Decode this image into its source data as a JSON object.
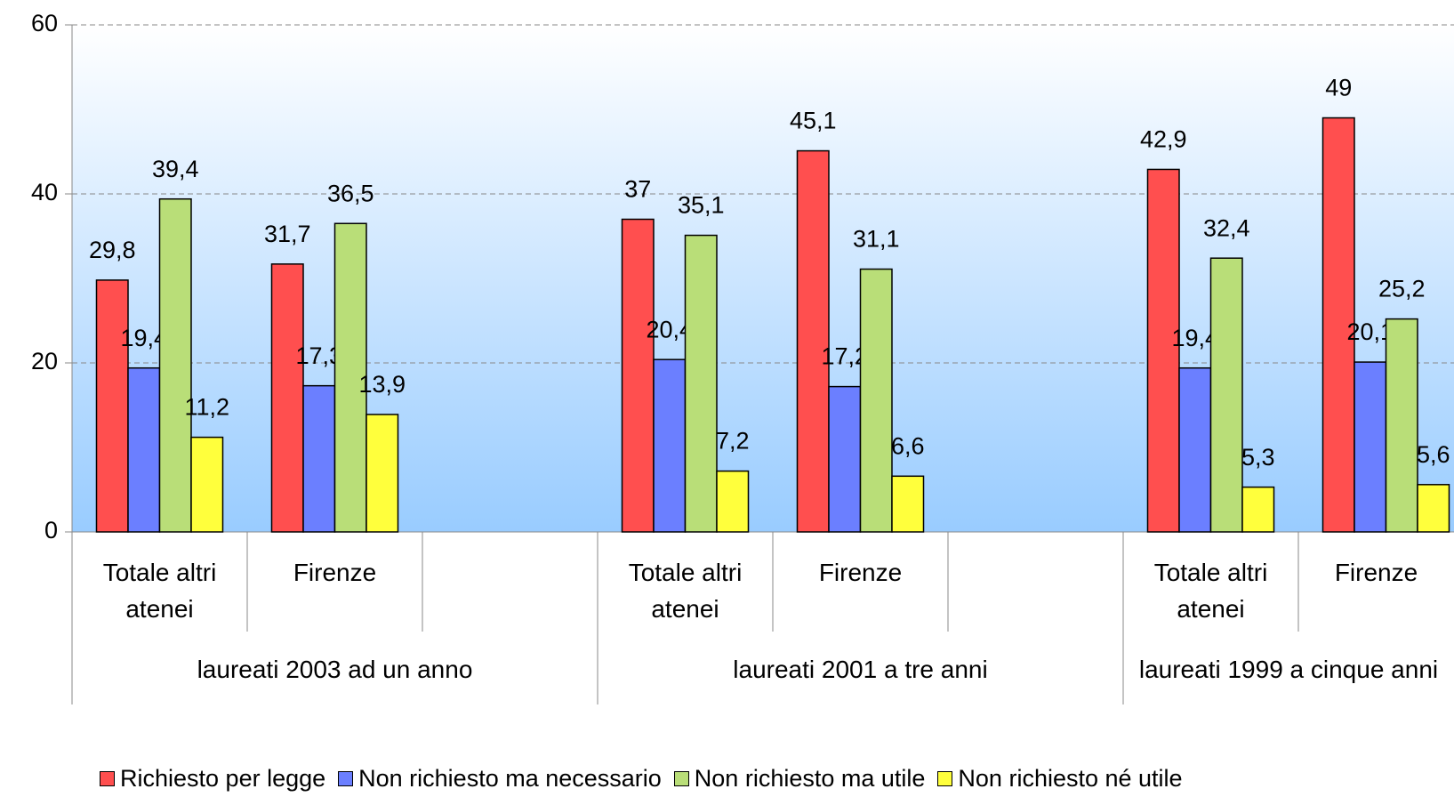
{
  "chart_data": {
    "type": "bar",
    "categories": [
      "Totale altri atenei",
      "Firenze",
      null,
      "Totale altri atenei",
      "Firenze",
      null,
      "Totale altri atenei",
      "Firenze",
      null
    ],
    "groups": [
      "laureati 2003 ad un anno",
      "laureati 2001 a tre anni",
      "laureati 1999 a cinque anni"
    ],
    "series": [
      {
        "name": "Richiesto per legge",
        "color": "#ff4f4f",
        "values": [
          29.8,
          31.7,
          null,
          37,
          45.1,
          null,
          42.9,
          49,
          null
        ],
        "value_labels": [
          "29,8",
          "31,7",
          null,
          "37",
          "45,1",
          null,
          "42,9",
          "49",
          null
        ]
      },
      {
        "name": "Non richiesto ma necessario",
        "color": "#6b7fff",
        "values": [
          19.4,
          17.3,
          null,
          20.4,
          17.2,
          null,
          19.4,
          20.1,
          null
        ],
        "value_labels": [
          "19,4",
          "17,3",
          null,
          "20,4",
          "17,2",
          null,
          "19,4",
          "20,1",
          null
        ]
      },
      {
        "name": "Non richiesto ma utile",
        "color": "#b9de78",
        "values": [
          39.4,
          36.5,
          null,
          35.1,
          31.1,
          null,
          32.4,
          25.2,
          null
        ],
        "value_labels": [
          "39,4",
          "36,5",
          null,
          "35,1",
          "31,1",
          null,
          "32,4",
          "25,2",
          null
        ]
      },
      {
        "name": "Non richiesto né utile",
        "color": "#ffff3c",
        "values": [
          11.2,
          13.9,
          null,
          7.2,
          6.6,
          null,
          5.3,
          5.6,
          null
        ],
        "value_labels": [
          "11,2",
          "13,9",
          null,
          "7,2",
          "6,6",
          null,
          "5,3",
          "5,6",
          null
        ]
      }
    ],
    "ylim": [
      0,
      60
    ],
    "yticks": [
      0,
      20,
      40,
      60
    ],
    "grid": true,
    "legend": "bottom"
  }
}
